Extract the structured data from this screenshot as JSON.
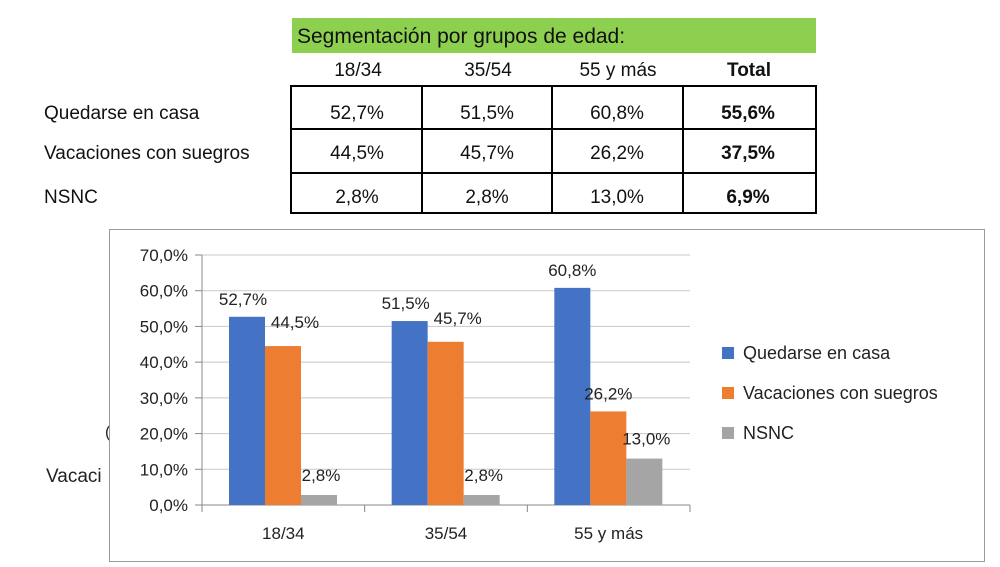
{
  "table": {
    "header": "Segmentación por grupos de edad:",
    "columns": [
      "18/34",
      "35/54",
      "55 y más",
      "Total"
    ],
    "rows": [
      {
        "label": "Quedarse en casa",
        "values": [
          "52,7%",
          "51,5%",
          "60,8%",
          "55,6%"
        ]
      },
      {
        "label": "Vacaciones con suegros",
        "values": [
          "44,5%",
          "45,7%",
          "26,2%",
          "37,5%"
        ]
      },
      {
        "label": "NSNC",
        "values": [
          "2,8%",
          "2,8%",
          "13,0%",
          "6,9%"
        ]
      }
    ]
  },
  "background_fragments": {
    "vacaci": "Vacaci",
    "paren": "("
  },
  "chart_data": {
    "type": "bar",
    "categories": [
      "18/34",
      "35/54",
      "55 y más"
    ],
    "series": [
      {
        "name": "Quedarse en casa",
        "values": [
          52.7,
          51.5,
          60.8
        ],
        "labels": [
          "52,7%",
          "51,5%",
          "60,8%"
        ],
        "color": "#4472c4"
      },
      {
        "name": "Vacaciones con suegros",
        "values": [
          44.5,
          45.7,
          26.2
        ],
        "labels": [
          "44,5%",
          "45,7%",
          "26,2%"
        ],
        "color": "#ed7d31"
      },
      {
        "name": "NSNC",
        "values": [
          2.8,
          2.8,
          13.0
        ],
        "labels": [
          "2,8%",
          "2,8%",
          "13,0%"
        ],
        "color": "#a5a5a5"
      }
    ],
    "ylim": [
      0,
      70
    ],
    "yticks": [
      0,
      10,
      20,
      30,
      40,
      50,
      60,
      70
    ],
    "ytick_labels": [
      "0,0%",
      "10,0%",
      "20,0%",
      "30,0%",
      "40,0%",
      "50,0%",
      "60,0%",
      "70,0%"
    ],
    "grid": true,
    "legend_position": "right"
  }
}
